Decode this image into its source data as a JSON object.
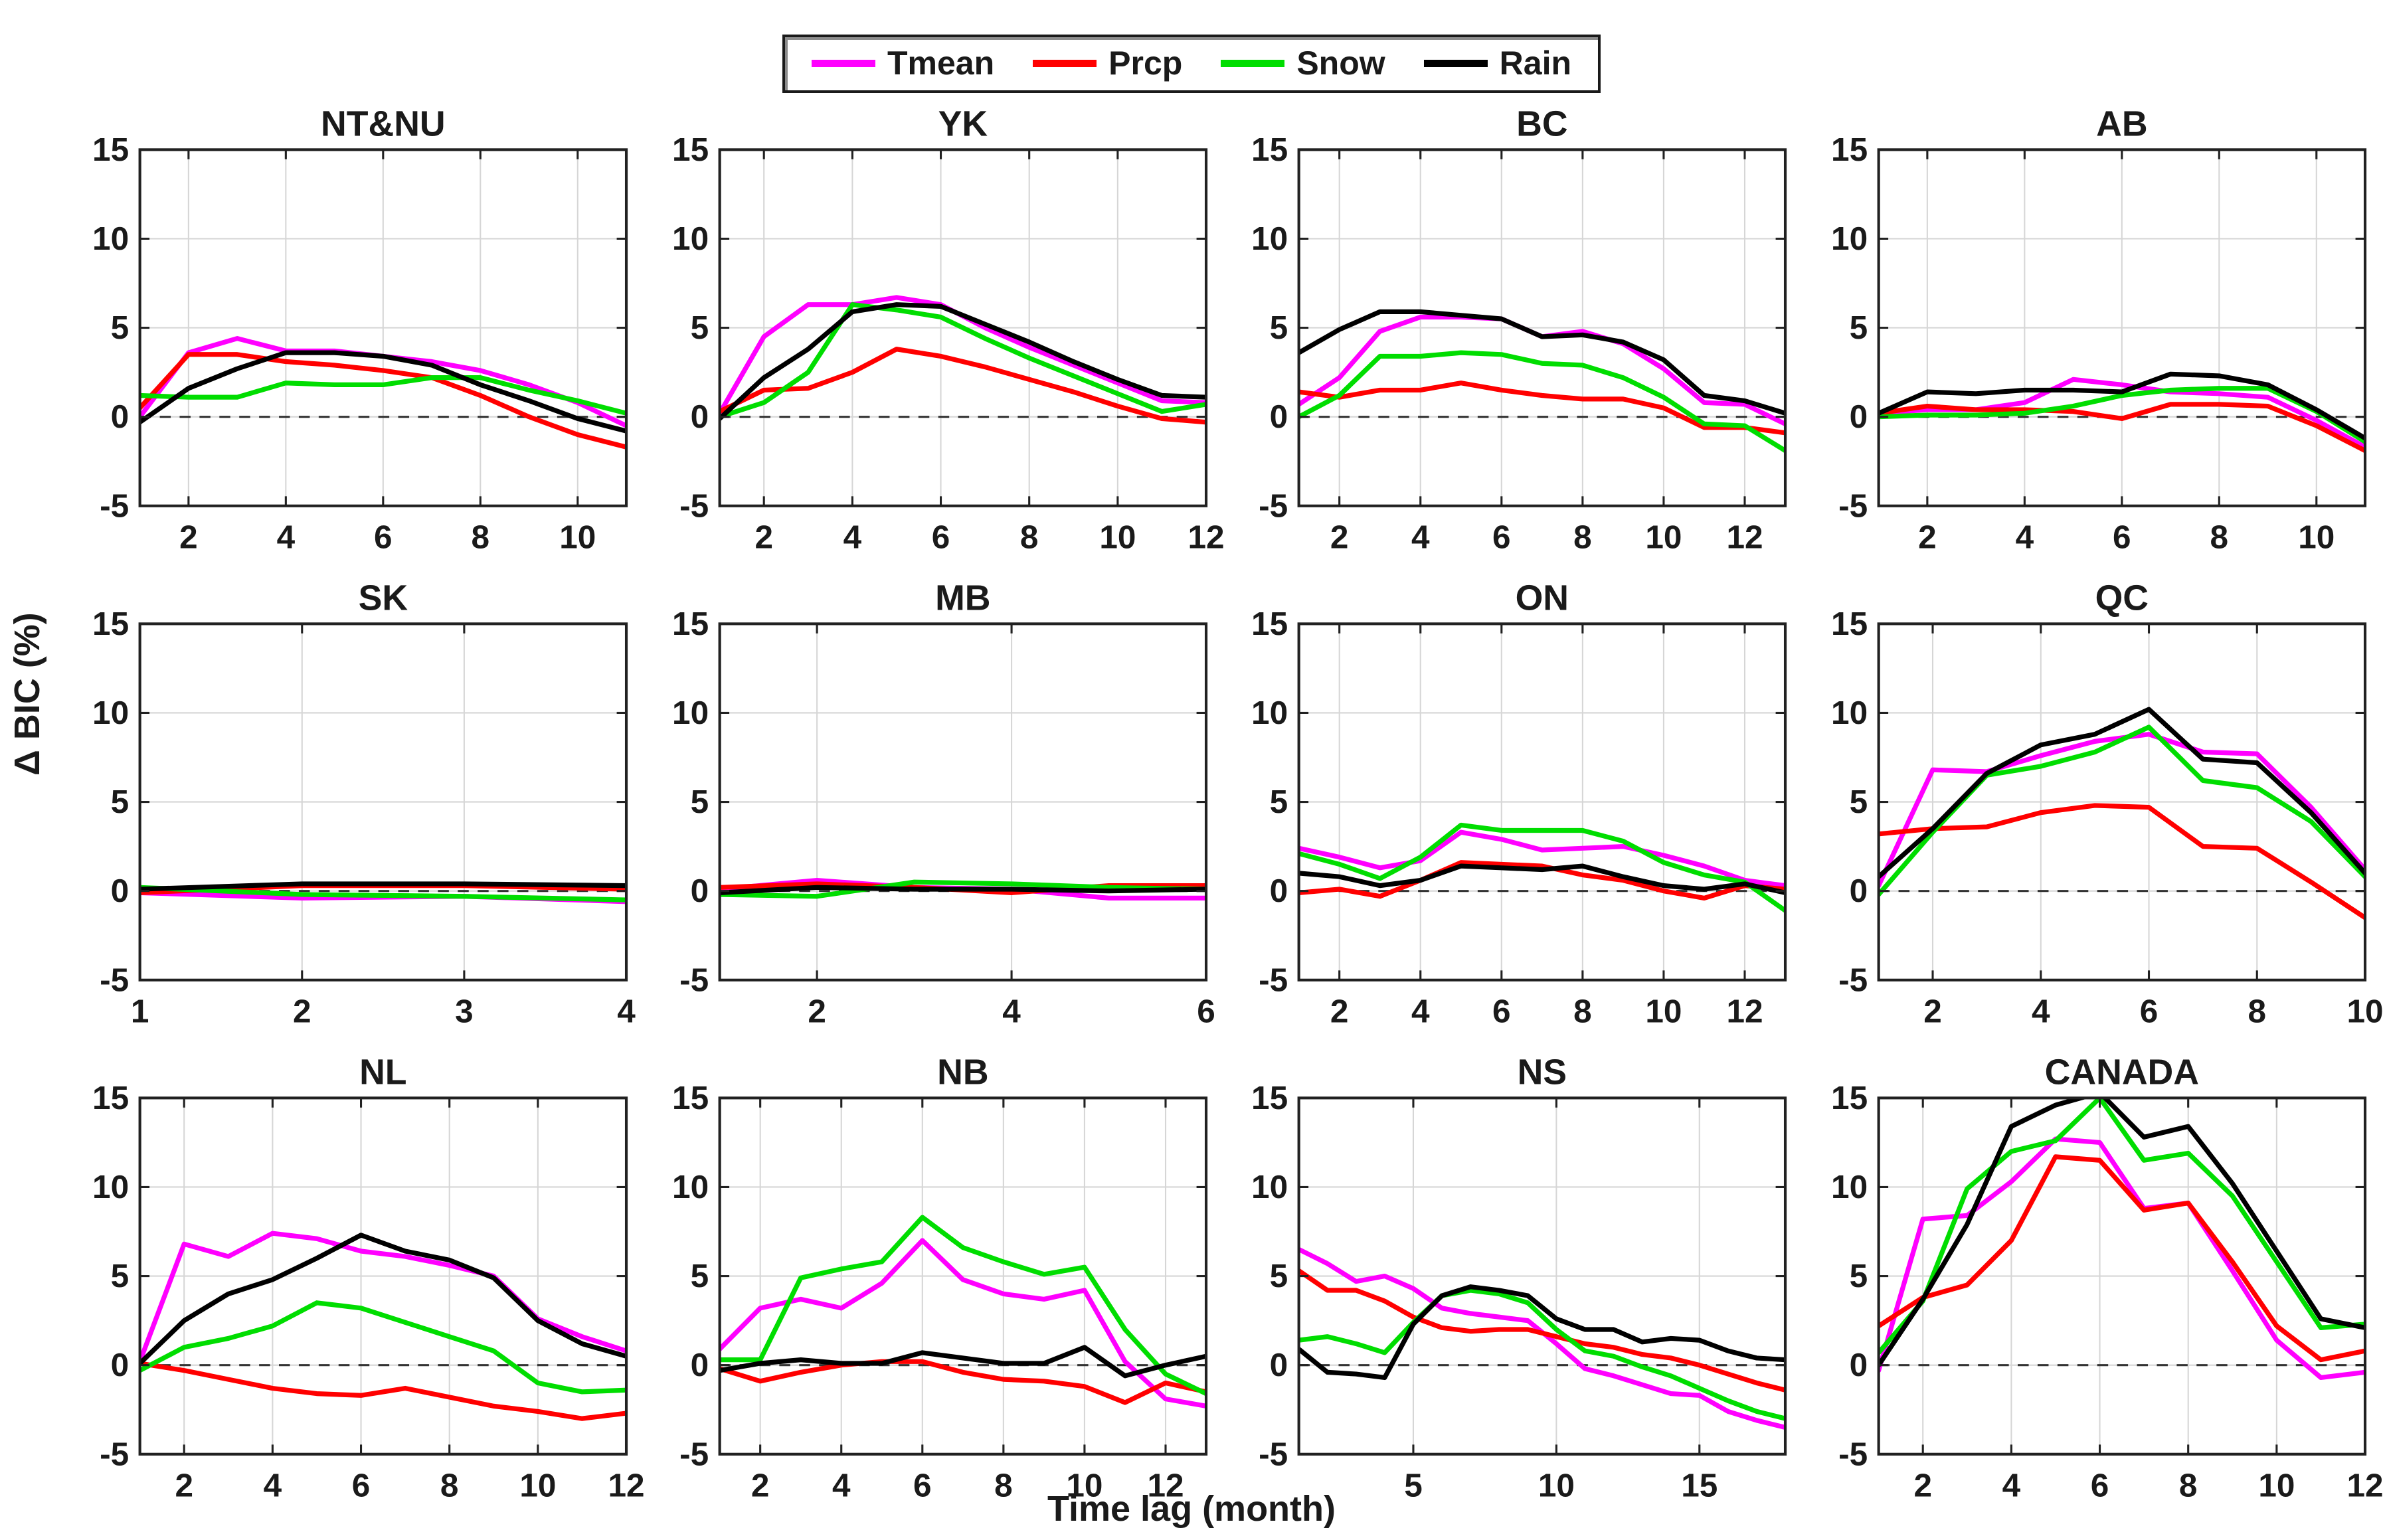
{
  "figure": {
    "ylabel": "Δ BIC (%)",
    "xlabel": "Time lag (month)",
    "legend": [
      {
        "label": "Tmean",
        "color": "#ff00ff"
      },
      {
        "label": "Prcp",
        "color": "#ff0000"
      },
      {
        "label": "Snow",
        "color": "#00dd00"
      },
      {
        "label": "Rain",
        "color": "#000000"
      }
    ],
    "grid_color": "#d6d6d6",
    "frame_color": "#212121",
    "zero_line_color": "#333333"
  },
  "chart_data": [
    {
      "type": "line",
      "title": "NT&NU",
      "x_min": 1,
      "x_max": 11,
      "x_ticks": [
        2,
        4,
        6,
        8,
        10
      ],
      "y_ticks": [
        15,
        10,
        5,
        0,
        -5
      ],
      "ylim": [
        -5,
        15
      ],
      "zero_dashed_line": true,
      "series": [
        {
          "name": "Tmean",
          "values": [
            0.0,
            3.6,
            4.4,
            3.7,
            3.7,
            3.4,
            3.1,
            2.6,
            1.8,
            0.8,
            -0.5
          ]
        },
        {
          "name": "Prcp",
          "values": [
            0.5,
            3.5,
            3.5,
            3.1,
            2.9,
            2.6,
            2.2,
            1.2,
            0.0,
            -1.0,
            -1.7
          ]
        },
        {
          "name": "Snow",
          "values": [
            1.2,
            1.1,
            1.1,
            1.9,
            1.8,
            1.8,
            2.2,
            2.2,
            1.5,
            0.9,
            0.2
          ]
        },
        {
          "name": "Rain",
          "values": [
            -0.3,
            1.6,
            2.7,
            3.6,
            3.6,
            3.4,
            2.9,
            1.8,
            0.9,
            -0.1,
            -0.8
          ]
        }
      ]
    },
    {
      "type": "line",
      "title": "YK",
      "x_min": 1,
      "x_max": 12,
      "x_ticks": [
        2,
        4,
        6,
        8,
        10,
        12
      ],
      "y_ticks": [
        15,
        10,
        5,
        0,
        -5
      ],
      "ylim": [
        -5,
        15
      ],
      "zero_dashed_line": true,
      "series": [
        {
          "name": "Tmean",
          "values": [
            0.2,
            4.5,
            6.3,
            6.3,
            6.7,
            6.3,
            5.0,
            3.9,
            2.9,
            1.9,
            0.9,
            0.8
          ]
        },
        {
          "name": "Prcp",
          "values": [
            0.3,
            1.5,
            1.6,
            2.5,
            3.8,
            3.4,
            2.8,
            2.1,
            1.4,
            0.6,
            -0.1,
            -0.3
          ]
        },
        {
          "name": "Snow",
          "values": [
            0.0,
            0.8,
            2.5,
            6.3,
            6.0,
            5.6,
            4.4,
            3.3,
            2.3,
            1.3,
            0.3,
            0.7
          ]
        },
        {
          "name": "Rain",
          "values": [
            -0.1,
            2.2,
            3.8,
            5.9,
            6.3,
            6.2,
            5.2,
            4.2,
            3.1,
            2.1,
            1.2,
            1.1
          ]
        }
      ]
    },
    {
      "type": "line",
      "title": "BC",
      "x_min": 1,
      "x_max": 13,
      "x_ticks": [
        2,
        4,
        6,
        8,
        10,
        12
      ],
      "y_ticks": [
        15,
        10,
        5,
        0,
        -5
      ],
      "ylim": [
        -5,
        15
      ],
      "zero_dashed_line": true,
      "series": [
        {
          "name": "Tmean",
          "values": [
            0.7,
            2.2,
            4.8,
            5.6,
            5.6,
            5.5,
            4.5,
            4.8,
            4.1,
            2.7,
            0.8,
            0.7,
            -0.4
          ]
        },
        {
          "name": "Prcp",
          "values": [
            1.4,
            1.1,
            1.5,
            1.5,
            1.9,
            1.5,
            1.2,
            1.0,
            1.0,
            0.5,
            -0.6,
            -0.6,
            -0.9
          ]
        },
        {
          "name": "Snow",
          "values": [
            0.0,
            1.2,
            3.4,
            3.4,
            3.6,
            3.5,
            3.0,
            2.9,
            2.2,
            1.1,
            -0.4,
            -0.5,
            -1.9
          ]
        },
        {
          "name": "Rain",
          "values": [
            3.6,
            4.9,
            5.9,
            5.9,
            5.7,
            5.5,
            4.5,
            4.6,
            4.2,
            3.2,
            1.2,
            0.9,
            0.2
          ]
        }
      ]
    },
    {
      "type": "line",
      "title": "AB",
      "x_min": 1,
      "x_max": 11,
      "x_ticks": [
        2,
        4,
        6,
        8,
        10
      ],
      "y_ticks": [
        15,
        10,
        5,
        0,
        -5
      ],
      "ylim": [
        -5,
        15
      ],
      "zero_dashed_line": true,
      "series": [
        {
          "name": "Tmean",
          "values": [
            0.2,
            0.4,
            0.4,
            0.8,
            2.1,
            1.8,
            1.4,
            1.3,
            1.1,
            -0.2,
            -1.7
          ]
        },
        {
          "name": "Prcp",
          "values": [
            0.2,
            0.6,
            0.4,
            0.4,
            0.3,
            -0.1,
            0.7,
            0.7,
            0.6,
            -0.5,
            -1.9
          ]
        },
        {
          "name": "Snow",
          "values": [
            0.0,
            0.1,
            0.1,
            0.2,
            0.6,
            1.2,
            1.5,
            1.6,
            1.6,
            0.3,
            -1.4
          ]
        },
        {
          "name": "Rain",
          "values": [
            0.2,
            1.4,
            1.3,
            1.5,
            1.5,
            1.4,
            2.4,
            2.3,
            1.8,
            0.4,
            -1.2
          ]
        }
      ]
    },
    {
      "type": "line",
      "title": "SK",
      "x_min": 1,
      "x_max": 4,
      "x_ticks": [
        1,
        2,
        3,
        4
      ],
      "y_ticks": [
        15,
        10,
        5,
        0,
        -5
      ],
      "ylim": [
        -5,
        15
      ],
      "zero_dashed_line": true,
      "series": [
        {
          "name": "Tmean",
          "values": [
            -0.1,
            -0.4,
            -0.3,
            -0.6
          ]
        },
        {
          "name": "Prcp",
          "values": [
            -0.1,
            0.3,
            0.3,
            0.1
          ]
        },
        {
          "name": "Snow",
          "values": [
            0.2,
            -0.2,
            -0.3,
            -0.5
          ]
        },
        {
          "name": "Rain",
          "values": [
            0.1,
            0.4,
            0.4,
            0.3
          ]
        }
      ]
    },
    {
      "type": "line",
      "title": "MB",
      "x_min": 1,
      "x_max": 6,
      "x_ticks": [
        2,
        4,
        6
      ],
      "y_ticks": [
        15,
        10,
        5,
        0,
        -5
      ],
      "ylim": [
        -5,
        15
      ],
      "zero_dashed_line": true,
      "series": [
        {
          "name": "Tmean",
          "values": [
            0.1,
            0.6,
            0.2,
            0.1,
            -0.4,
            -0.4
          ]
        },
        {
          "name": "Prcp",
          "values": [
            0.2,
            0.4,
            0.2,
            -0.1,
            0.3,
            0.3
          ]
        },
        {
          "name": "Snow",
          "values": [
            -0.2,
            -0.3,
            0.5,
            0.4,
            0.2,
            0.1
          ]
        },
        {
          "name": "Rain",
          "values": [
            -0.1,
            0.2,
            0.1,
            0.1,
            0.0,
            0.1
          ]
        }
      ]
    },
    {
      "type": "line",
      "title": "ON",
      "x_min": 1,
      "x_max": 13,
      "x_ticks": [
        2,
        4,
        6,
        8,
        10,
        12
      ],
      "y_ticks": [
        15,
        10,
        5,
        0,
        -5
      ],
      "ylim": [
        -5,
        15
      ],
      "zero_dashed_line": true,
      "series": [
        {
          "name": "Tmean",
          "values": [
            2.4,
            1.9,
            1.3,
            1.7,
            3.3,
            2.9,
            2.3,
            2.4,
            2.5,
            2.0,
            1.4,
            0.6,
            0.3
          ]
        },
        {
          "name": "Prcp",
          "values": [
            -0.1,
            0.1,
            -0.3,
            0.6,
            1.6,
            1.5,
            1.4,
            0.9,
            0.6,
            0.0,
            -0.4,
            0.3,
            0.1
          ]
        },
        {
          "name": "Snow",
          "values": [
            2.1,
            1.5,
            0.7,
            1.9,
            3.7,
            3.4,
            3.4,
            3.4,
            2.8,
            1.6,
            0.9,
            0.5,
            -1.1
          ]
        },
        {
          "name": "Rain",
          "values": [
            1.0,
            0.8,
            0.3,
            0.6,
            1.4,
            1.3,
            1.2,
            1.4,
            0.8,
            0.3,
            0.1,
            0.4,
            -0.1
          ]
        }
      ]
    },
    {
      "type": "line",
      "title": "QC",
      "x_min": 1,
      "x_max": 10,
      "x_ticks": [
        2,
        4,
        6,
        8,
        10
      ],
      "y_ticks": [
        15,
        10,
        5,
        0,
        -5
      ],
      "ylim": [
        -5,
        15
      ],
      "zero_dashed_line": true,
      "series": [
        {
          "name": "Tmean",
          "values": [
            0.3,
            6.8,
            6.7,
            7.6,
            8.4,
            8.8,
            7.8,
            7.7,
            4.7,
            1.2
          ]
        },
        {
          "name": "Prcp",
          "values": [
            3.2,
            3.5,
            3.6,
            4.4,
            4.8,
            4.7,
            2.5,
            2.4,
            0.5,
            -1.5
          ]
        },
        {
          "name": "Snow",
          "values": [
            -0.2,
            3.3,
            6.5,
            7.0,
            7.8,
            9.2,
            6.2,
            5.8,
            3.9,
            0.8
          ]
        },
        {
          "name": "Rain",
          "values": [
            0.8,
            3.5,
            6.6,
            8.2,
            8.8,
            10.2,
            7.4,
            7.2,
            4.4,
            1.0
          ]
        }
      ]
    },
    {
      "type": "line",
      "title": "NL",
      "x_min": 1,
      "x_max": 12,
      "x_ticks": [
        2,
        4,
        6,
        8,
        10,
        12
      ],
      "y_ticks": [
        15,
        10,
        5,
        0,
        -5
      ],
      "ylim": [
        -5,
        15
      ],
      "zero_dashed_line": true,
      "series": [
        {
          "name": "Tmean",
          "values": [
            0.2,
            6.8,
            6.1,
            7.4,
            7.1,
            6.4,
            6.1,
            5.6,
            5.0,
            2.6,
            1.6,
            0.8
          ]
        },
        {
          "name": "Prcp",
          "values": [
            0.1,
            -0.3,
            -0.8,
            -1.3,
            -1.6,
            -1.7,
            -1.3,
            -1.8,
            -2.3,
            -2.6,
            -3.0,
            -2.7
          ]
        },
        {
          "name": "Snow",
          "values": [
            -0.3,
            1.0,
            1.5,
            2.2,
            3.5,
            3.2,
            2.4,
            1.6,
            0.8,
            -1.0,
            -1.5,
            -1.4
          ]
        },
        {
          "name": "Rain",
          "values": [
            0.1,
            2.5,
            4.0,
            4.8,
            6.0,
            7.3,
            6.4,
            5.9,
            4.9,
            2.5,
            1.2,
            0.5
          ]
        }
      ]
    },
    {
      "type": "line",
      "title": "NB",
      "x_min": 1,
      "x_max": 13,
      "x_ticks": [
        2,
        4,
        6,
        8,
        10,
        12
      ],
      "y_ticks": [
        15,
        10,
        5,
        0,
        -5
      ],
      "ylim": [
        -5,
        15
      ],
      "zero_dashed_line": true,
      "series": [
        {
          "name": "Tmean",
          "values": [
            0.9,
            3.2,
            3.7,
            3.2,
            4.6,
            7.0,
            4.8,
            4.0,
            3.7,
            4.2,
            0.2,
            -1.9,
            -2.3
          ]
        },
        {
          "name": "Prcp",
          "values": [
            -0.2,
            -0.9,
            -0.4,
            0.0,
            0.2,
            0.2,
            -0.4,
            -0.8,
            -0.9,
            -1.2,
            -2.1,
            -1.0,
            -1.5
          ]
        },
        {
          "name": "Snow",
          "values": [
            0.3,
            0.3,
            4.9,
            5.4,
            5.8,
            8.3,
            6.6,
            5.8,
            5.1,
            5.5,
            2.0,
            -0.5,
            -1.6
          ]
        },
        {
          "name": "Rain",
          "values": [
            -0.3,
            0.1,
            0.3,
            0.1,
            0.1,
            0.7,
            0.4,
            0.1,
            0.1,
            1.0,
            -0.6,
            0.0,
            0.5
          ]
        }
      ]
    },
    {
      "type": "line",
      "title": "NS",
      "x_min": 1,
      "x_max": 18,
      "x_ticks": [
        5,
        10,
        15
      ],
      "y_ticks": [
        15,
        10,
        5,
        0,
        -5
      ],
      "ylim": [
        -5,
        15
      ],
      "zero_dashed_line": true,
      "series": [
        {
          "name": "Tmean",
          "values": [
            6.5,
            5.7,
            4.7,
            5.0,
            4.3,
            3.2,
            2.9,
            2.7,
            2.5,
            1.2,
            -0.2,
            -0.6,
            -1.1,
            -1.6,
            -1.7,
            -2.6,
            -3.1,
            -3.5
          ]
        },
        {
          "name": "Prcp",
          "values": [
            5.3,
            4.2,
            4.2,
            3.6,
            2.7,
            2.1,
            1.9,
            2.0,
            2.0,
            1.6,
            1.2,
            1.0,
            0.6,
            0.4,
            0.0,
            -0.5,
            -1.0,
            -1.4
          ]
        },
        {
          "name": "Snow",
          "values": [
            1.4,
            1.6,
            1.2,
            0.7,
            2.4,
            3.9,
            4.2,
            4.0,
            3.5,
            2.0,
            0.8,
            0.5,
            -0.1,
            -0.6,
            -1.3,
            -2.0,
            -2.6,
            -3.0
          ]
        },
        {
          "name": "Rain",
          "values": [
            0.9,
            -0.4,
            -0.5,
            -0.7,
            2.3,
            3.9,
            4.4,
            4.2,
            3.9,
            2.6,
            2.0,
            2.0,
            1.3,
            1.5,
            1.4,
            0.8,
            0.4,
            0.3
          ]
        }
      ]
    },
    {
      "type": "line",
      "title": "CANADA",
      "x_min": 1,
      "x_max": 12,
      "x_ticks": [
        2,
        4,
        6,
        8,
        10,
        12
      ],
      "y_ticks": [
        15,
        10,
        5,
        0,
        -5
      ],
      "ylim": [
        -5,
        15
      ],
      "zero_dashed_line": true,
      "series": [
        {
          "name": "Tmean",
          "values": [
            -0.3,
            8.2,
            8.4,
            10.3,
            12.7,
            12.5,
            8.8,
            9.1,
            5.3,
            1.4,
            -0.7,
            -0.4
          ]
        },
        {
          "name": "Prcp",
          "values": [
            2.2,
            3.8,
            4.5,
            7.0,
            11.7,
            11.5,
            8.7,
            9.1,
            5.8,
            2.2,
            0.3,
            0.8
          ]
        },
        {
          "name": "Snow",
          "values": [
            0.7,
            3.6,
            9.9,
            12.0,
            12.6,
            15.0,
            11.5,
            11.9,
            9.5,
            5.8,
            2.1,
            2.3
          ]
        },
        {
          "name": "Rain",
          "values": [
            0.0,
            3.7,
            7.9,
            13.4,
            14.6,
            15.3,
            12.8,
            13.4,
            10.2,
            6.4,
            2.6,
            2.1
          ]
        }
      ]
    }
  ]
}
